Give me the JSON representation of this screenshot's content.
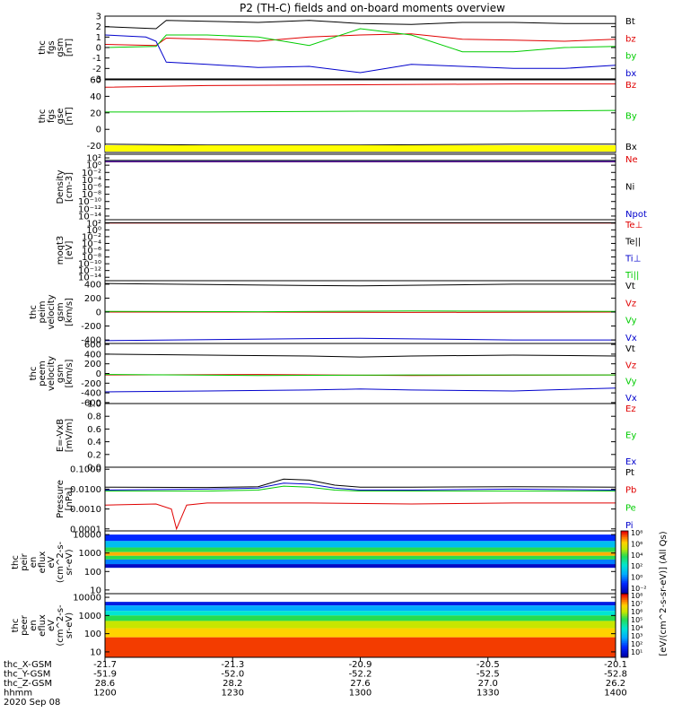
{
  "title": "P2 (TH-C) fields and on-board moments overview",
  "chart_data": [
    {
      "type": "line",
      "ylabel": [
        "thc",
        "fgs",
        "gsm",
        "[nT]"
      ],
      "ylim": [
        -3,
        3
      ],
      "yticks": [
        "3",
        "2",
        "1",
        "0",
        "-1",
        "-2",
        "-3"
      ],
      "tick_values": [
        3,
        2,
        1,
        0,
        -1,
        -2,
        -3
      ],
      "legend": [
        {
          "label": "Bt",
          "color": "#000000"
        },
        {
          "label": "bz",
          "color": "#e00000"
        },
        {
          "label": "by",
          "color": "#00cc00"
        },
        {
          "label": "bx",
          "color": "#0000cc"
        }
      ],
      "series": [
        {
          "name": "Bt",
          "color": "#000000",
          "x": [
            0,
            0.1,
            0.12,
            0.2,
            0.3,
            0.4,
            0.5,
            0.6,
            0.7,
            0.8,
            0.9,
            1
          ],
          "y": [
            2,
            1.8,
            2.6,
            2.5,
            2.4,
            2.6,
            2.3,
            2.2,
            2.4,
            2.4,
            2.3,
            2.3
          ]
        },
        {
          "name": "bz",
          "color": "#e00000",
          "x": [
            0,
            0.1,
            0.12,
            0.2,
            0.3,
            0.4,
            0.5,
            0.6,
            0.7,
            0.8,
            0.9,
            1
          ],
          "y": [
            0.3,
            0.2,
            0.9,
            0.8,
            0.6,
            1.0,
            1.2,
            1.3,
            0.8,
            0.7,
            0.6,
            0.8
          ]
        },
        {
          "name": "by",
          "color": "#00cc00",
          "x": [
            0,
            0.1,
            0.12,
            0.2,
            0.3,
            0.4,
            0.5,
            0.6,
            0.7,
            0.8,
            0.9,
            1
          ],
          "y": [
            0,
            0.1,
            1.2,
            1.2,
            1.0,
            0.2,
            1.8,
            1.2,
            -0.4,
            -0.4,
            0,
            0.1
          ]
        },
        {
          "name": "bx",
          "color": "#0000cc",
          "x": [
            0,
            0.08,
            0.1,
            0.12,
            0.2,
            0.3,
            0.4,
            0.5,
            0.6,
            0.7,
            0.8,
            0.9,
            1
          ],
          "y": [
            1.2,
            1.0,
            0.6,
            -1.4,
            -1.6,
            -1.9,
            -1.8,
            -2.4,
            -1.6,
            -1.8,
            -2.0,
            -2.0,
            -1.7
          ]
        }
      ]
    },
    {
      "type": "line",
      "ylabel": [
        "thc",
        "fgs",
        "gse",
        "[nT]"
      ],
      "ylim": [
        -28,
        60
      ],
      "yticks": [
        "60",
        "40",
        "20",
        "0",
        "-20"
      ],
      "tick_values": [
        60,
        40,
        20,
        0,
        -20
      ],
      "legend": [
        {
          "label": "Bz",
          "color": "#e00000"
        },
        {
          "label": "By",
          "color": "#00cc00"
        },
        {
          "label": "Bx",
          "color": "#000000"
        }
      ],
      "series": [
        {
          "name": "Bz",
          "color": "#e00000",
          "x": [
            0,
            0.2,
            0.5,
            0.8,
            1
          ],
          "y": [
            51,
            53,
            54,
            55,
            55
          ]
        },
        {
          "name": "By",
          "color": "#00cc00",
          "x": [
            0,
            0.2,
            0.5,
            0.8,
            1
          ],
          "y": [
            21,
            21,
            22,
            22,
            23
          ]
        },
        {
          "name": "Bx",
          "color": "#000000",
          "x": [
            0,
            0.2,
            0.5,
            0.8,
            1
          ],
          "y": [
            -18,
            -19,
            -19,
            -18,
            -18
          ]
        }
      ]
    },
    {
      "type": "line",
      "ylabel": [
        "Density",
        "[cm-3]"
      ],
      "scale": "log",
      "ylim": [
        -15,
        3
      ],
      "yticks": [
        "10²",
        "10⁰",
        "10⁻²",
        "10⁻⁴",
        "10⁻⁶",
        "10⁻⁸",
        "10⁻¹⁰",
        "10⁻¹²",
        "10⁻¹⁴"
      ],
      "tick_values": [
        2,
        0,
        -2,
        -4,
        -6,
        -8,
        -10,
        -12,
        -14
      ],
      "legend": [
        {
          "label": "Ne",
          "color": "#e00000"
        },
        {
          "label": "Ni",
          "color": "#000000"
        },
        {
          "label": "Npot",
          "color": "#0000cc"
        }
      ],
      "series": [
        {
          "name": "Ne",
          "color": "#e00000",
          "x": [
            0,
            1
          ],
          "y": [
            0.9,
            0.9
          ]
        },
        {
          "name": "Ni",
          "color": "#000000",
          "x": [
            0,
            1
          ],
          "y": [
            1.3,
            1.3
          ]
        },
        {
          "name": "Npot",
          "color": "#0000cc",
          "x": [
            0,
            1
          ],
          "y": [
            1.0,
            1.0
          ]
        }
      ]
    },
    {
      "type": "line",
      "ylabel": [
        "moqt3",
        "[eV]"
      ],
      "scale": "log",
      "ylim": [
        -15,
        3
      ],
      "yticks": [
        "10²",
        "10⁰",
        "10⁻²",
        "10⁻⁴",
        "10⁻⁶",
        "10⁻⁸",
        "10⁻¹⁰",
        "10⁻¹²",
        "10⁻¹⁴"
      ],
      "tick_values": [
        2,
        0,
        -2,
        -4,
        -6,
        -8,
        -10,
        -12,
        -14
      ],
      "legend": [
        {
          "label": "Te⊥",
          "color": "#e00000"
        },
        {
          "label": "Te||",
          "color": "#000000"
        },
        {
          "label": "Ti⊥",
          "color": "#0000cc"
        },
        {
          "label": "Ti||",
          "color": "#00cc00"
        }
      ],
      "series": [
        {
          "name": "Te⊥",
          "color": "#e00000",
          "x": [
            0,
            1
          ],
          "y": [
            2.0,
            2.0
          ]
        },
        {
          "name": "Te||",
          "color": "#000000",
          "x": [
            0,
            1
          ],
          "y": [
            2.1,
            2.1
          ]
        },
        {
          "name": "Ti⊥",
          "color": "#0000cc",
          "x": [
            0,
            1
          ],
          "y": [
            3.0,
            3.0
          ]
        },
        {
          "name": "Ti||",
          "color": "#00cc00",
          "x": [
            0,
            1
          ],
          "y": [
            3.0,
            3.0
          ]
        }
      ]
    },
    {
      "type": "line",
      "ylabel": [
        "thc",
        "peim",
        "velocity",
        "gsm",
        "[km/s]"
      ],
      "ylim": [
        -450,
        450
      ],
      "yticks": [
        "400",
        "200",
        "0",
        "-200",
        "-400"
      ],
      "tick_values": [
        400,
        200,
        0,
        -200,
        -400
      ],
      "legend": [
        {
          "label": "Vt",
          "color": "#000000"
        },
        {
          "label": "Vz",
          "color": "#e00000"
        },
        {
          "label": "Vy",
          "color": "#00cc00"
        },
        {
          "label": "Vx",
          "color": "#0000cc"
        }
      ],
      "series": [
        {
          "name": "Vt",
          "color": "#000000",
          "x": [
            0,
            0.2,
            0.4,
            0.5,
            0.6,
            0.8,
            1
          ],
          "y": [
            410,
            395,
            380,
            375,
            385,
            400,
            400
          ]
        },
        {
          "name": "Vz",
          "color": "#e00000",
          "x": [
            0,
            0.3,
            0.6,
            1
          ],
          "y": [
            0,
            0,
            -5,
            0
          ]
        },
        {
          "name": "Vy",
          "color": "#00cc00",
          "x": [
            0,
            0.3,
            0.6,
            1
          ],
          "y": [
            10,
            5,
            15,
            10
          ]
        },
        {
          "name": "Vx",
          "color": "#0000cc",
          "x": [
            0,
            0.2,
            0.4,
            0.5,
            0.6,
            0.8,
            1
          ],
          "y": [
            -410,
            -395,
            -380,
            -375,
            -385,
            -400,
            -400
          ]
        }
      ]
    },
    {
      "type": "line",
      "ylabel": [
        "thc",
        "peem",
        "velocity",
        "gsm",
        "[km/s]"
      ],
      "ylim": [
        -620,
        620
      ],
      "yticks": [
        "600",
        "400",
        "200",
        "0",
        "-200",
        "-400",
        "-600"
      ],
      "tick_values": [
        600,
        400,
        200,
        0,
        -200,
        -400,
        -600
      ],
      "legend": [
        {
          "label": "Vt",
          "color": "#000000"
        },
        {
          "label": "Vz",
          "color": "#e00000"
        },
        {
          "label": "Vy",
          "color": "#00cc00"
        },
        {
          "label": "Vx",
          "color": "#0000cc"
        }
      ],
      "series": [
        {
          "name": "Vt",
          "color": "#000000",
          "x": [
            0,
            0.2,
            0.4,
            0.5,
            0.6,
            0.8,
            1
          ],
          "y": [
            400,
            380,
            360,
            340,
            360,
            380,
            360
          ]
        },
        {
          "name": "Vz",
          "color": "#e00000",
          "x": [
            0,
            0.3,
            0.6,
            1
          ],
          "y": [
            -30,
            -20,
            -40,
            -30
          ]
        },
        {
          "name": "Vy",
          "color": "#00cc00",
          "x": [
            0,
            0.3,
            0.6,
            1
          ],
          "y": [
            -20,
            -40,
            -30,
            -30
          ]
        },
        {
          "name": "Vx",
          "color": "#0000cc",
          "x": [
            0,
            0.2,
            0.4,
            0.5,
            0.6,
            0.8,
            1
          ],
          "y": [
            -380,
            -360,
            -340,
            -320,
            -340,
            -360,
            -300
          ]
        }
      ]
    },
    {
      "type": "line",
      "ylabel": [
        "E=-VxB",
        "[mV/m]"
      ],
      "ylim": [
        0,
        1
      ],
      "yticks": [
        "1.0",
        "0.8",
        "0.6",
        "0.4",
        "0.2",
        "0.0"
      ],
      "tick_values": [
        1,
        0.8,
        0.6,
        0.4,
        0.2,
        0
      ],
      "legend": [
        {
          "label": "Ez",
          "color": "#e00000"
        },
        {
          "label": "Ey",
          "color": "#00cc00"
        },
        {
          "label": "Ex",
          "color": "#0000cc"
        }
      ],
      "series": []
    },
    {
      "type": "line",
      "ylabel": [
        "Pressure",
        "[nPa]"
      ],
      "scale": "log",
      "ylim": [
        -4.1,
        -0.9
      ],
      "yticks": [
        "0.1000",
        "0.0100",
        "0.0010",
        "0.0001"
      ],
      "tick_values": [
        -1,
        -2,
        -3,
        -4
      ],
      "legend": [
        {
          "label": "Pt",
          "color": "#000000"
        },
        {
          "label": "Pb",
          "color": "#e00000"
        },
        {
          "label": "Pe",
          "color": "#00cc00"
        },
        {
          "label": "Pi",
          "color": "#0000cc"
        }
      ],
      "series": [
        {
          "name": "Pt",
          "color": "#000000",
          "x": [
            0,
            0.2,
            0.3,
            0.35,
            0.4,
            0.45,
            0.5,
            0.6,
            0.8,
            1
          ],
          "y": [
            -1.9,
            -1.92,
            -1.88,
            -1.5,
            -1.55,
            -1.8,
            -1.9,
            -1.9,
            -1.88,
            -1.9
          ]
        },
        {
          "name": "Pb",
          "color": "#e00000",
          "x": [
            0,
            0.1,
            0.13,
            0.14,
            0.16,
            0.2,
            0.4,
            0.6,
            0.8,
            1
          ],
          "y": [
            -2.8,
            -2.75,
            -3.0,
            -4.0,
            -2.8,
            -2.7,
            -2.7,
            -2.75,
            -2.7,
            -2.7
          ]
        },
        {
          "name": "Pe",
          "color": "#00cc00",
          "x": [
            0,
            0.2,
            0.3,
            0.35,
            0.4,
            0.45,
            0.5,
            0.6,
            0.8,
            1
          ],
          "y": [
            -2.1,
            -2.1,
            -2.05,
            -1.85,
            -1.9,
            -2.05,
            -2.1,
            -2.1,
            -2.1,
            -2.1
          ]
        },
        {
          "name": "Pi",
          "color": "#0000cc",
          "x": [
            0,
            0.2,
            0.3,
            0.35,
            0.4,
            0.45,
            0.5,
            0.6,
            0.8,
            1
          ],
          "y": [
            -2.05,
            -2.0,
            -1.95,
            -1.7,
            -1.75,
            -1.95,
            -2.05,
            -2.05,
            -2.0,
            -2.05
          ]
        }
      ]
    },
    {
      "type": "heatmap",
      "ylabel": [
        "thc",
        "peir",
        "en",
        "eflux",
        "eV",
        "(cm^2-s-",
        "sr-eV)"
      ],
      "scale": "log",
      "ylim": [
        0.8,
        4.2
      ],
      "yticks": [
        "10000",
        "1000",
        "100",
        "10"
      ],
      "tick_values": [
        4,
        3,
        2,
        1
      ],
      "bands": [
        {
          "from": 3.65,
          "to": 4.0,
          "level": 0.15
        },
        {
          "from": 3.3,
          "to": 3.65,
          "level": 0.35
        },
        {
          "from": 3.05,
          "to": 3.3,
          "level": 0.6
        },
        {
          "from": 2.85,
          "to": 3.05,
          "level": 0.85
        },
        {
          "from": 2.65,
          "to": 2.85,
          "level": 0.6
        },
        {
          "from": 2.4,
          "to": 2.65,
          "level": 0.25
        },
        {
          "from": 2.2,
          "to": 2.4,
          "level": 0.05
        }
      ]
    },
    {
      "type": "heatmap",
      "ylabel": [
        "thc",
        "peer",
        "en",
        "eflux",
        "eV",
        "(cm^2-s-",
        "sr-eV)"
      ],
      "scale": "log",
      "ylim": [
        0.7,
        4.2
      ],
      "yticks": [
        "10000",
        "1000",
        "100",
        "10"
      ],
      "tick_values": [
        4,
        3,
        2,
        1
      ],
      "bands": [
        {
          "from": 3.55,
          "to": 3.75,
          "level": 0.1
        },
        {
          "from": 3.25,
          "to": 3.55,
          "level": 0.3
        },
        {
          "from": 3.0,
          "to": 3.25,
          "level": 0.45
        },
        {
          "from": 2.7,
          "to": 3.0,
          "level": 0.6
        },
        {
          "from": 2.3,
          "to": 2.7,
          "level": 0.72
        },
        {
          "from": 1.8,
          "to": 2.3,
          "level": 0.82
        },
        {
          "from": 0.7,
          "to": 1.8,
          "level": 0.95
        }
      ]
    }
  ],
  "colorbar": {
    "label": "[eV/(cm^2-s-sr-eV)] (All Qs)",
    "upper": [
      "10⁸",
      "10⁶",
      "10⁴",
      "10²",
      "10⁰",
      "10⁻²"
    ],
    "lower": [
      "10⁸",
      "10⁷",
      "10⁶",
      "10⁵",
      "10⁴",
      "10³",
      "10²",
      "10¹"
    ]
  },
  "xaxis": {
    "row_labels": [
      "thc_X-GSM",
      "thc_Y-GSM",
      "thc_Z-GSM",
      "hhmm",
      "2020 Sep 08"
    ],
    "ticks": [
      {
        "x": 0,
        "values": [
          "-21.7",
          "-51.9",
          "28.6",
          "1200"
        ]
      },
      {
        "x": 0.25,
        "values": [
          "-21.3",
          "-52.0",
          "28.2",
          "1230"
        ]
      },
      {
        "x": 0.5,
        "values": [
          "-20.9",
          "-52.2",
          "27.6",
          "1300"
        ]
      },
      {
        "x": 0.75,
        "values": [
          "-20.5",
          "-52.5",
          "27.0",
          "1330"
        ]
      },
      {
        "x": 1,
        "values": [
          "-20.1",
          "-52.8",
          "26.2",
          "1400"
        ]
      }
    ]
  }
}
